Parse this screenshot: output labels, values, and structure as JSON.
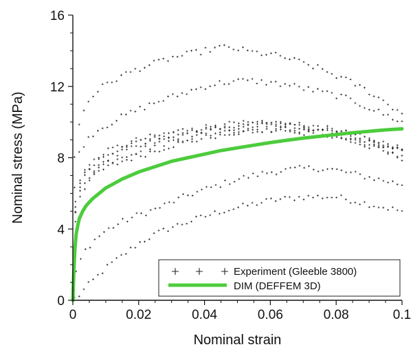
{
  "chart_data": {
    "type": "scatter",
    "xlabel": "Nominal strain",
    "ylabel": "Nominal stress (MPa)",
    "xlim": [
      0,
      0.1
    ],
    "ylim": [
      0,
      16
    ],
    "x_ticks": [
      0,
      0.02,
      0.04,
      0.06,
      0.08,
      0.1
    ],
    "x_tick_labels": [
      "0",
      "0.02",
      "0.04",
      "0.06",
      "0.08",
      "0.1"
    ],
    "y_ticks": [
      0,
      4,
      8,
      12,
      16
    ],
    "y_tick_labels": [
      "0",
      "4",
      "8",
      "12",
      "16"
    ],
    "grid": false,
    "legend_position": "bottom-right",
    "series": [
      {
        "name": "Experiment (Gleeble 3800)",
        "type": "scatter",
        "marker": "+",
        "color": "#222222",
        "curves": [
          {
            "x": [
              0.0005,
              0.002,
              0.005,
              0.01,
              0.015,
              0.02,
              0.025,
              0.03,
              0.035,
              0.04,
              0.045,
              0.05,
              0.055,
              0.06,
              0.065,
              0.07,
              0.075,
              0.08,
              0.085,
              0.09,
              0.095,
              0.1
            ],
            "y": [
              0.1,
              0.3,
              0.9,
              1.8,
              2.5,
              3.2,
              3.7,
              4.1,
              4.4,
              4.7,
              5.0,
              5.2,
              5.4,
              5.6,
              5.7,
              5.8,
              5.8,
              5.8,
              5.6,
              5.4,
              5.2,
              5.0
            ]
          },
          {
            "x": [
              0.001,
              0.003,
              0.006,
              0.01,
              0.015,
              0.02,
              0.025,
              0.03,
              0.035,
              0.04,
              0.045,
              0.05,
              0.055,
              0.06,
              0.065,
              0.07,
              0.075,
              0.08,
              0.085,
              0.09,
              0.095,
              0.1
            ],
            "y": [
              1.5,
              2.6,
              3.3,
              3.9,
              4.4,
              4.8,
              5.1,
              5.5,
              5.9,
              6.2,
              6.5,
              6.8,
              7.0,
              7.2,
              7.3,
              7.4,
              7.4,
              7.3,
              7.1,
              6.9,
              6.7,
              6.5
            ]
          },
          {
            "x": [
              0.0008,
              0.002,
              0.004,
              0.007,
              0.01,
              0.015,
              0.02,
              0.025,
              0.03,
              0.035,
              0.04,
              0.045,
              0.05,
              0.055,
              0.06,
              0.065,
              0.07,
              0.075,
              0.08,
              0.085,
              0.09,
              0.095,
              0.1
            ],
            "y": [
              4.5,
              5.8,
              6.5,
              7.1,
              7.4,
              7.8,
              8.1,
              8.4,
              8.7,
              8.9,
              9.1,
              9.3,
              9.4,
              9.5,
              9.5,
              9.5,
              9.4,
              9.3,
              9.1,
              8.9,
              8.6,
              8.3,
              8.0
            ]
          },
          {
            "x": [
              0.0008,
              0.002,
              0.004,
              0.007,
              0.01,
              0.015,
              0.02,
              0.025,
              0.03,
              0.035,
              0.04,
              0.045,
              0.05,
              0.055,
              0.06,
              0.065,
              0.07,
              0.075,
              0.08,
              0.085,
              0.09,
              0.095,
              0.1
            ],
            "y": [
              5.0,
              6.3,
              7.0,
              7.5,
              7.9,
              8.3,
              8.6,
              8.9,
              9.1,
              9.3,
              9.5,
              9.6,
              9.7,
              9.8,
              9.8,
              9.8,
              9.7,
              9.6,
              9.5,
              9.3,
              9.0,
              8.7,
              8.4
            ]
          },
          {
            "x": [
              0.0008,
              0.002,
              0.004,
              0.007,
              0.01,
              0.015,
              0.02,
              0.025,
              0.03,
              0.035,
              0.04,
              0.045,
              0.05,
              0.055,
              0.06,
              0.065,
              0.07,
              0.075,
              0.08,
              0.085,
              0.09,
              0.095,
              0.1
            ],
            "y": [
              5.6,
              6.8,
              7.4,
              7.9,
              8.3,
              8.7,
              9.0,
              9.2,
              9.4,
              9.6,
              9.7,
              9.8,
              9.9,
              9.9,
              9.9,
              9.9,
              9.8,
              9.7,
              9.5,
              9.3,
              9.0,
              8.8,
              8.5
            ]
          },
          {
            "x": [
              0.0008,
              0.002,
              0.004,
              0.007,
              0.01,
              0.015,
              0.02,
              0.025,
              0.03,
              0.035,
              0.04,
              0.045,
              0.05,
              0.055,
              0.06,
              0.065,
              0.07,
              0.075,
              0.08,
              0.085,
              0.09,
              0.095,
              0.1
            ],
            "y": [
              4.8,
              6.0,
              6.8,
              7.3,
              7.7,
              8.1,
              8.4,
              8.7,
              8.9,
              9.1,
              9.3,
              9.4,
              9.5,
              9.6,
              9.6,
              9.6,
              9.5,
              9.4,
              9.2,
              9.0,
              8.7,
              8.4,
              8.1
            ]
          },
          {
            "x": [
              0.0008,
              0.002,
              0.004,
              0.007,
              0.01,
              0.015,
              0.02,
              0.025,
              0.03,
              0.035,
              0.04,
              0.045,
              0.05,
              0.055,
              0.06,
              0.065,
              0.07,
              0.075,
              0.08,
              0.085,
              0.09,
              0.095,
              0.1
            ],
            "y": [
              5.3,
              6.5,
              7.2,
              7.7,
              8.1,
              8.5,
              8.8,
              9.1,
              9.3,
              9.5,
              9.6,
              9.7,
              9.8,
              9.9,
              9.9,
              9.8,
              9.8,
              9.6,
              9.5,
              9.2,
              9.0,
              8.7,
              8.4
            ]
          },
          {
            "x": [
              0.0005,
              0.002,
              0.004,
              0.007,
              0.01,
              0.015,
              0.02,
              0.025,
              0.03,
              0.035,
              0.04,
              0.045,
              0.05,
              0.055,
              0.06,
              0.065,
              0.07,
              0.075,
              0.08,
              0.085,
              0.09,
              0.095,
              0.1
            ],
            "y": [
              6.5,
              8.3,
              9.0,
              9.5,
              9.8,
              10.3,
              10.7,
              11.1,
              11.4,
              11.7,
              12.0,
              12.2,
              12.3,
              12.3,
              12.2,
              12.1,
              11.9,
              11.7,
              11.5,
              11.2,
              10.8,
              10.4,
              10.0
            ]
          },
          {
            "x": [
              0.0005,
              0.002,
              0.004,
              0.007,
              0.01,
              0.015,
              0.02,
              0.025,
              0.03,
              0.035,
              0.04,
              0.045,
              0.05,
              0.055,
              0.06,
              0.065,
              0.07,
              0.075,
              0.08,
              0.085,
              0.09,
              0.095,
              0.1
            ],
            "y": [
              8.0,
              10.0,
              11.0,
              11.7,
              12.1,
              12.6,
              13.0,
              13.3,
              13.6,
              13.8,
              14.0,
              14.2,
              14.1,
              13.9,
              13.8,
              13.6,
              13.3,
              13.0,
              12.6,
              12.2,
              11.7,
              11.1,
              10.5
            ]
          }
        ]
      },
      {
        "name": "DIM (DEFFEM 3D)",
        "type": "line",
        "color": "#4ccc3c",
        "x": [
          0,
          0.0003,
          0.0006,
          0.001,
          0.0015,
          0.002,
          0.003,
          0.004,
          0.005,
          0.006,
          0.008,
          0.01,
          0.012,
          0.015,
          0.02,
          0.025,
          0.03,
          0.035,
          0.04,
          0.045,
          0.05,
          0.055,
          0.06,
          0.065,
          0.07,
          0.075,
          0.08,
          0.085,
          0.09,
          0.095,
          0.1
        ],
        "y": [
          0,
          1.6,
          2.8,
          3.7,
          4.2,
          4.6,
          5.0,
          5.3,
          5.5,
          5.7,
          6.0,
          6.3,
          6.5,
          6.8,
          7.2,
          7.5,
          7.8,
          8.0,
          8.2,
          8.4,
          8.55,
          8.7,
          8.85,
          8.98,
          9.1,
          9.2,
          9.3,
          9.4,
          9.48,
          9.56,
          9.62
        ]
      }
    ]
  }
}
